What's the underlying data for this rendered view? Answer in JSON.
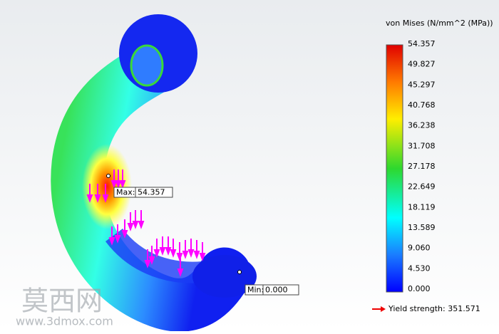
{
  "legend": {
    "title": "von Mises (N/mm^2 (MPa))",
    "labels": [
      "54.357",
      "49.827",
      "45.297",
      "40.768",
      "36.238",
      "31.708",
      "27.178",
      "22.649",
      "18.119",
      "13.589",
      "9.060",
      "4.530",
      "0.000"
    ]
  },
  "max_probe": {
    "label": "Max:",
    "value": "54.357"
  },
  "min_probe": {
    "label": "Min:",
    "value": "0.000"
  },
  "yield_strength": "Yield strength: 351.571",
  "watermark": {
    "title": "莫西网",
    "url": "www.3dmox.com"
  }
}
